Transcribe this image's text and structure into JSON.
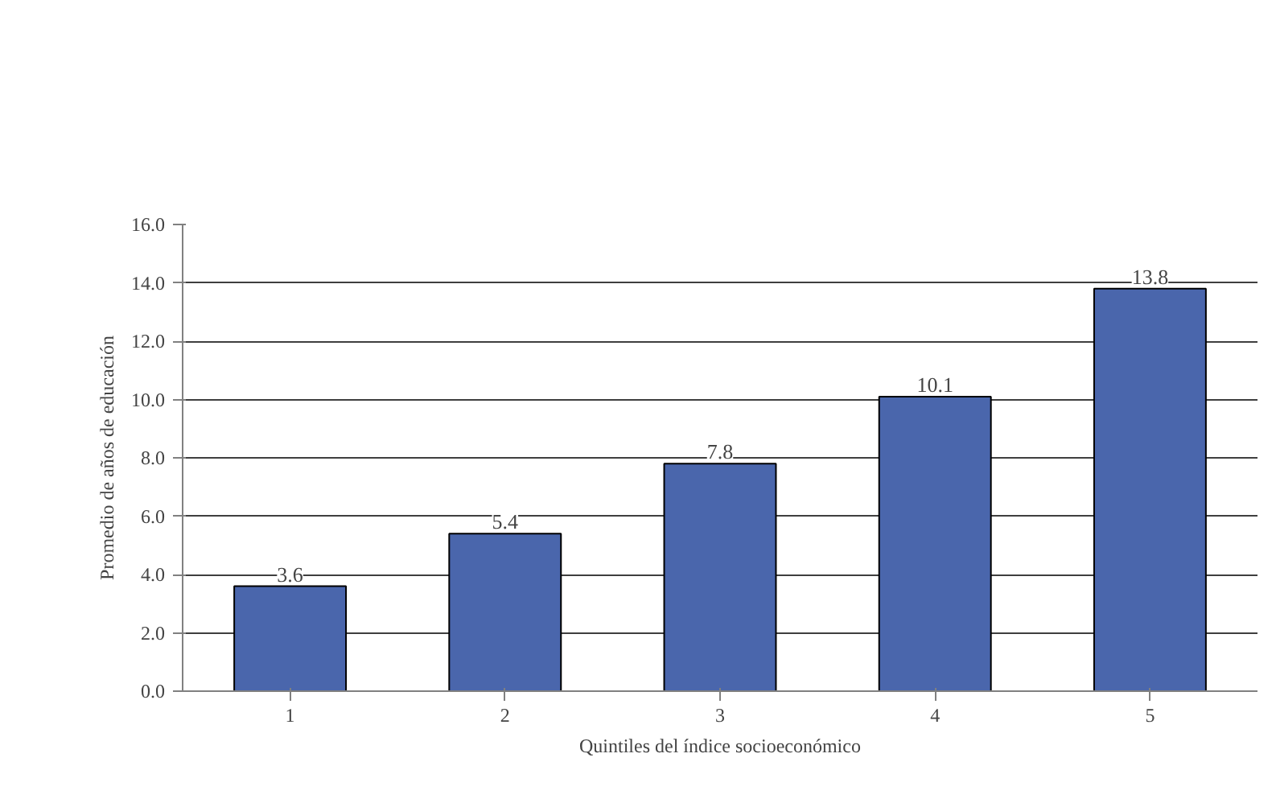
{
  "chart_data": {
    "type": "bar",
    "xlabel": "Quintiles del índice socioeconómico",
    "ylabel": "Promedio de años de educación",
    "categories": [
      "1",
      "2",
      "3",
      "4",
      "5"
    ],
    "values": [
      3.6,
      5.4,
      7.8,
      10.1,
      13.8
    ],
    "color": "#4a66ac",
    "ylim": [
      0,
      16
    ],
    "yticks": [
      {
        "value": 0,
        "label": "0.0"
      },
      {
        "value": 2,
        "label": "2.0"
      },
      {
        "value": 4,
        "label": "4.0"
      },
      {
        "value": 6,
        "label": "6.0"
      },
      {
        "value": 8,
        "label": "8.0"
      },
      {
        "value": 10,
        "label": "10.0"
      },
      {
        "value": 12,
        "label": "12.0"
      },
      {
        "value": 14,
        "label": "14.0"
      },
      {
        "value": 16,
        "label": "16.0"
      }
    ],
    "grid": "y",
    "data_labels": true
  }
}
